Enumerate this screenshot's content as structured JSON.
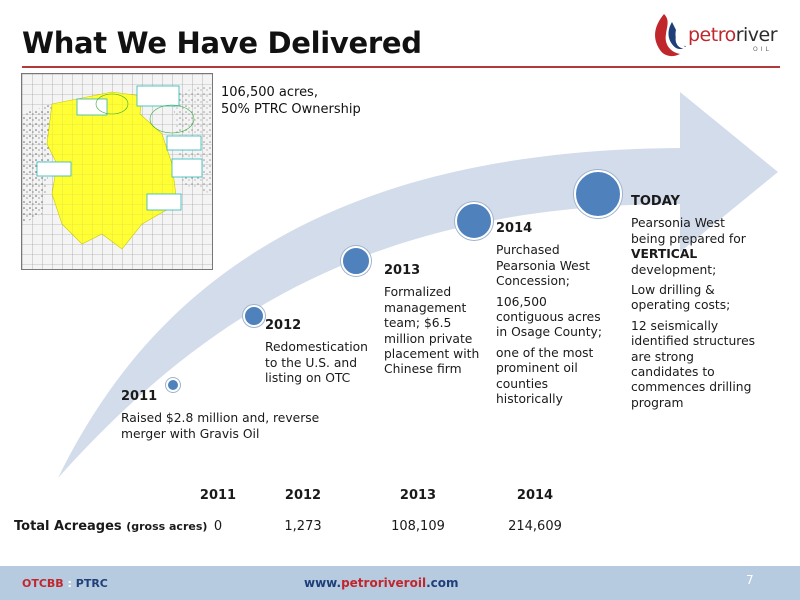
{
  "header": {
    "title": "What We Have Delivered",
    "logo_text_a": "petro",
    "logo_text_b": "river",
    "logo_sub": "OIL"
  },
  "map_note": {
    "line1": "106,500 acres,",
    "line2": "50% PTRC Ownership"
  },
  "milestones": [
    {
      "year": "2011",
      "paragraphs": [
        "Raised $2.8 million and, reverse merger with Gravis Oil"
      ]
    },
    {
      "year": "2012",
      "paragraphs": [
        "Redomestication to the U.S. and listing on OTC"
      ]
    },
    {
      "year": "2013",
      "paragraphs": [
        "Formalized management team; $6.5 million private placement with Chinese firm"
      ]
    },
    {
      "year": "2014",
      "paragraphs": [
        "Purchased Pearsonia West Concession;",
        "106,500 contiguous acres in Osage County;",
        "one of the most prominent oil counties historically"
      ]
    },
    {
      "year": "TODAY",
      "p1_before": "Pearsonia West being prepared for",
      "p1_bold": "VERTICAL",
      "p1_after": "development;",
      "p2": "Low drilling & operating costs;",
      "p3": "12 seismically identified structures are strong candidates to commences drilling program"
    }
  ],
  "acreage": {
    "label": "Total Acreages",
    "label_sub": "(gross acres)",
    "years": [
      "2011",
      "2012",
      "2013",
      "2014"
    ],
    "values": [
      "0",
      "1,273",
      "108,109",
      "214,609"
    ]
  },
  "footer": {
    "ticker_a": "OTCBB",
    "ticker_sep": " : ",
    "ticker_b": "PTRC",
    "url_a": "www.",
    "url_b": "petroriveroil",
    "url_c": ".com",
    "page": "7"
  },
  "colors": {
    "accent_red": "#c0272d",
    "dot_blue": "#4f81bd",
    "arrow_fill": "#d3dcea",
    "map_yellow": "#ffff33",
    "footer_bar": "#b7cbe0"
  },
  "icons": [
    "petroriver-logo-icon",
    "lease-map-image"
  ]
}
